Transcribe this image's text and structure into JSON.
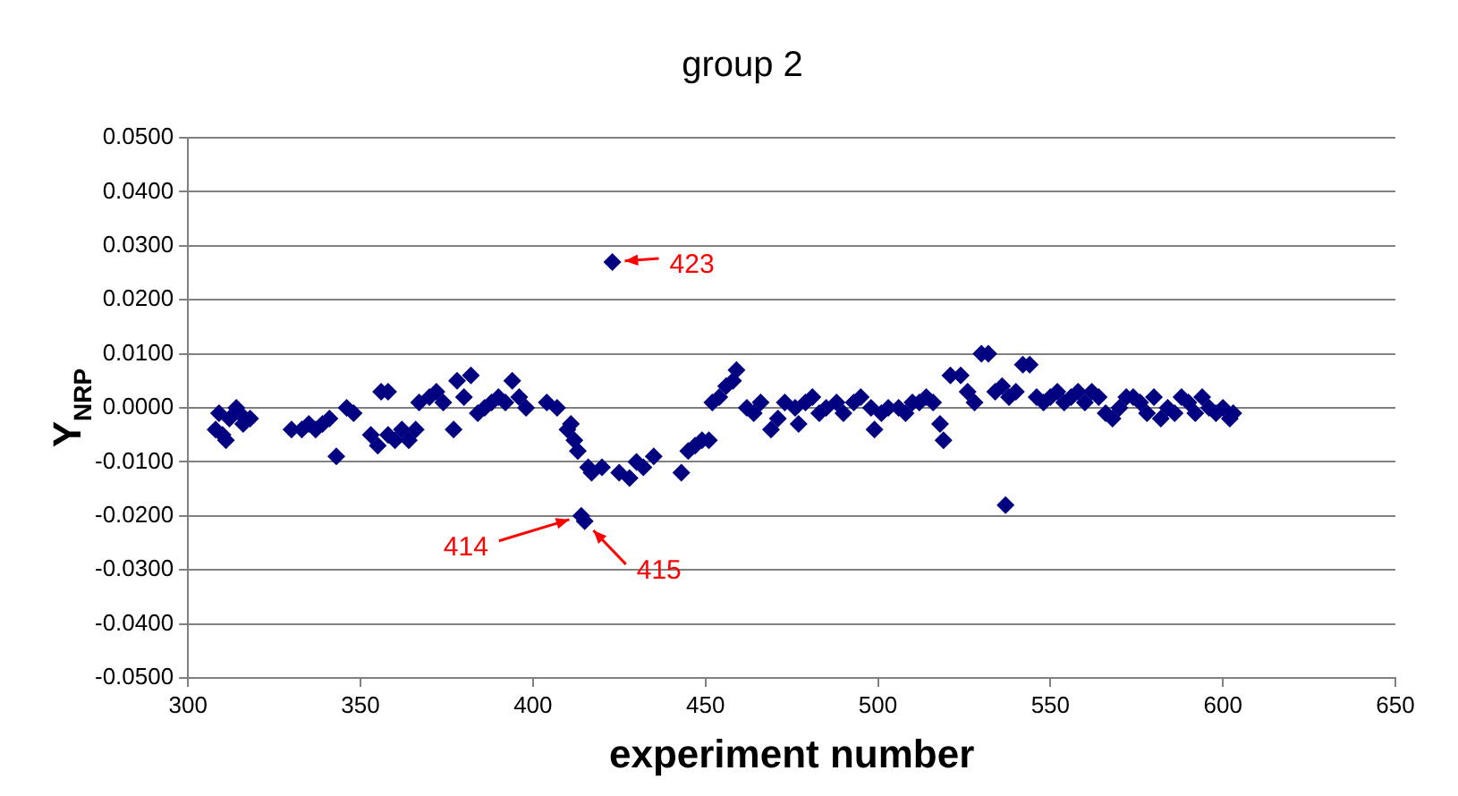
{
  "chart_data": {
    "type": "scatter",
    "title": "group 2",
    "xlabel": "experiment number",
    "ylabel": "Y$_{NRP}$",
    "marker": "diamond",
    "grid": "y",
    "legend": false,
    "xlim": [
      300,
      650
    ],
    "xticks": [
      300,
      350,
      400,
      450,
      500,
      550,
      600,
      650
    ],
    "ylim": [
      -0.05,
      0.05
    ],
    "yticks": [
      {
        "value": -0.05,
        "label": "-0.0500"
      },
      {
        "value": -0.04,
        "label": "-0.0400"
      },
      {
        "value": -0.03,
        "label": "-0.0300"
      },
      {
        "value": -0.02,
        "label": "-0.0200"
      },
      {
        "value": -0.01,
        "label": "-0.0100"
      },
      {
        "value": 0,
        "label": "0.0000"
      },
      {
        "value": 0.01,
        "label": "0.0100"
      },
      {
        "value": 0.02,
        "label": "0.0200"
      },
      {
        "value": 0.03,
        "label": "0.0300"
      },
      {
        "value": 0.04,
        "label": "0.0400"
      },
      {
        "value": 0.05,
        "label": "0.0500"
      }
    ],
    "annotations": [
      {
        "text": "423",
        "x": 423,
        "y": 0.027
      },
      {
        "text": "414",
        "x": 414,
        "y": -0.02
      },
      {
        "text": "415",
        "x": 415,
        "y": -0.021
      }
    ],
    "series": [
      {
        "color": "#000080",
        "x": [
          308,
          309,
          310,
          311,
          312,
          314,
          315,
          316,
          318,
          330,
          333,
          335,
          337,
          339,
          341,
          343,
          346,
          348,
          353,
          355,
          356,
          358,
          358,
          360,
          362,
          364,
          366,
          367,
          370,
          372,
          374,
          377,
          378,
          380,
          382,
          384,
          386,
          388,
          390,
          392,
          394,
          396,
          398,
          404,
          407,
          410,
          411,
          412,
          413,
          414,
          415,
          416,
          417,
          420,
          423,
          425,
          428,
          430,
          432,
          435,
          443,
          445,
          447,
          449,
          451,
          452,
          454,
          456,
          458,
          459,
          462,
          464,
          466,
          469,
          471,
          473,
          476,
          477,
          479,
          481,
          483,
          485,
          488,
          490,
          493,
          495,
          498,
          499,
          501,
          503,
          506,
          508,
          510,
          512,
          514,
          516,
          518,
          519,
          521,
          524,
          526,
          528,
          530,
          532,
          534,
          536,
          537,
          538,
          540,
          542,
          544,
          546,
          548,
          550,
          552,
          554,
          556,
          558,
          560,
          562,
          564,
          566,
          568,
          570,
          572,
          574,
          576,
          578,
          580,
          582,
          584,
          586,
          588,
          590,
          592,
          594,
          596,
          598,
          600,
          602,
          603
        ],
        "values": [
          -0.004,
          -0.001,
          -0.005,
          -0.006,
          -0.002,
          0.0,
          -0.001,
          -0.003,
          -0.002,
          -0.004,
          -0.004,
          -0.003,
          -0.004,
          -0.003,
          -0.002,
          -0.009,
          0.0,
          -0.001,
          -0.005,
          -0.007,
          0.003,
          0.003,
          -0.005,
          -0.006,
          -0.004,
          -0.006,
          -0.004,
          0.001,
          0.002,
          0.003,
          0.001,
          -0.004,
          0.005,
          0.002,
          0.006,
          -0.001,
          0.0,
          0.001,
          0.002,
          0.001,
          0.005,
          0.002,
          0.0,
          0.001,
          0.0,
          -0.004,
          -0.003,
          -0.006,
          -0.008,
          -0.02,
          -0.021,
          -0.011,
          -0.012,
          -0.011,
          0.027,
          -0.012,
          -0.013,
          -0.01,
          -0.011,
          -0.009,
          -0.012,
          -0.008,
          -0.007,
          -0.006,
          -0.006,
          0.001,
          0.002,
          0.004,
          0.005,
          0.007,
          0.0,
          -0.001,
          0.001,
          -0.004,
          -0.002,
          0.001,
          0.0,
          -0.003,
          0.001,
          0.002,
          -0.001,
          0.0,
          0.001,
          -0.001,
          0.001,
          0.002,
          0.0,
          -0.004,
          -0.001,
          0.0,
          0.0,
          -0.001,
          0.001,
          0.001,
          0.002,
          0.001,
          -0.003,
          -0.006,
          0.006,
          0.006,
          0.003,
          0.001,
          0.01,
          0.01,
          0.003,
          0.004,
          -0.018,
          0.002,
          0.003,
          0.008,
          0.008,
          0.002,
          0.001,
          0.002,
          0.003,
          0.001,
          0.002,
          0.003,
          0.001,
          0.003,
          0.002,
          -0.001,
          -0.002,
          0.0,
          0.002,
          0.002,
          0.001,
          -0.001,
          0.002,
          -0.002,
          0.0,
          -0.001,
          0.002,
          0.001,
          -0.001,
          0.002,
          0.0,
          -0.001,
          0.0,
          -0.002,
          -0.001
        ]
      }
    ]
  }
}
